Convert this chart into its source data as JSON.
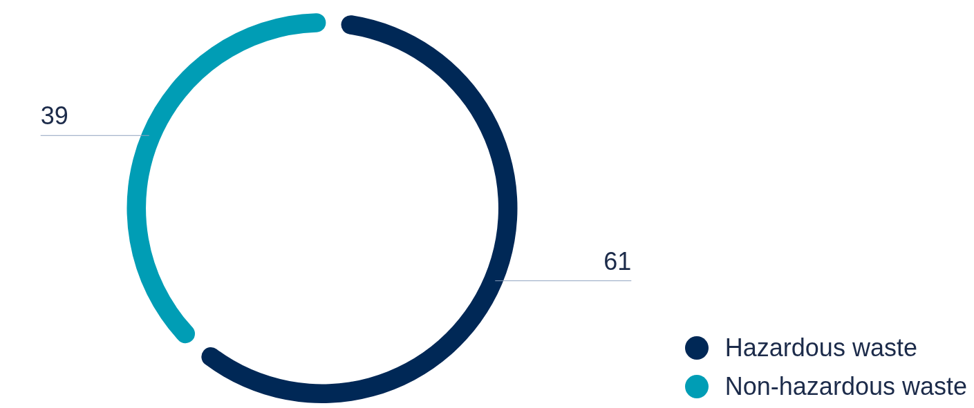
{
  "chart_data": {
    "type": "donut",
    "categories": [
      "Hazardous waste",
      "Non-hazardous waste"
    ],
    "values": [
      61,
      39
    ],
    "colors": [
      "#002856",
      "#009db5"
    ],
    "data_labels": true,
    "legend": "bottom right"
  }
}
